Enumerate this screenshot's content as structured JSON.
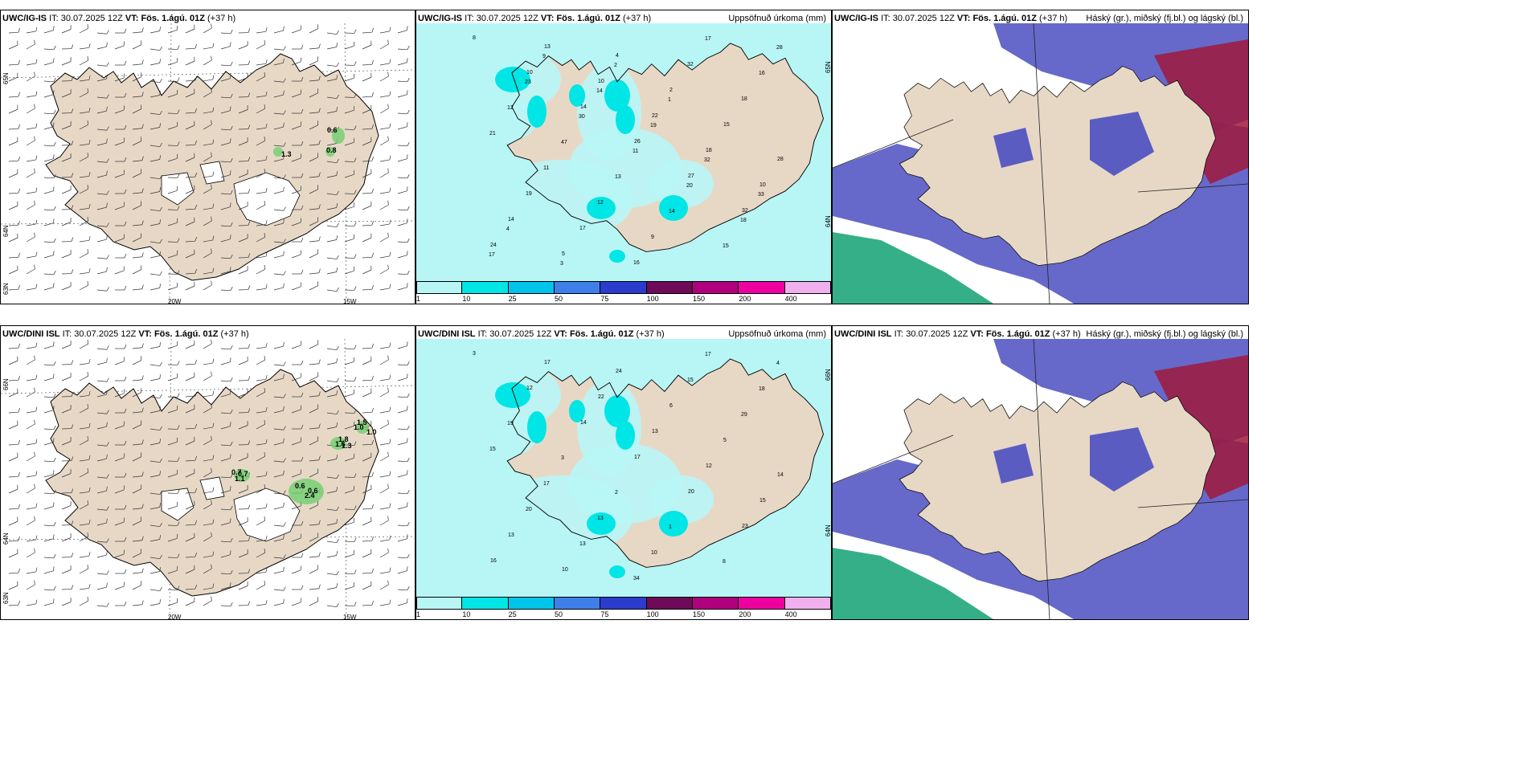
{
  "rows": [
    {
      "model": "UWC/IG-IS",
      "wind": {
        "it_label": "IT:",
        "it": "30.07.2025 12Z",
        "vt_label": "VT:",
        "vt": "Fös. 1.ágú. 01Z",
        "lead": "(+37 h)",
        "values": [
          "0.6",
          "0.8",
          "1.3"
        ],
        "lat_labels": [
          "65N",
          "64N",
          "63N"
        ],
        "lon_labels": [
          "20W",
          "15W"
        ]
      },
      "precip": {
        "it_label": "IT:",
        "it": "30.07.2025 12Z",
        "vt_label": "VT:",
        "vt": "Fös. 1.ágú. 01Z",
        "lead": "(+37 h)",
        "right": "Uppsöfnuð úrkoma (mm)",
        "values": [
          "8",
          "10",
          "14",
          "26",
          "27",
          "32",
          "24",
          "13",
          "10",
          "22",
          "18",
          "10",
          "14",
          "5",
          "4",
          "2",
          "15",
          "28",
          "19",
          "17",
          "16",
          "32",
          "18",
          "21",
          "11",
          "12",
          "9",
          "17",
          "16",
          "12",
          "47",
          "13",
          "14",
          "15",
          "28",
          "23",
          "30",
          "11",
          "20",
          "18",
          "17",
          "9",
          "14",
          "19",
          "32",
          "33",
          "4",
          "3",
          "2",
          "1"
        ],
        "lat_labels": [
          "65N",
          "64N"
        ]
      },
      "cloud": {
        "it_label": "IT:",
        "it": "30.07.2025 12Z",
        "vt_label": "VT:",
        "vt": "Fös. 1.ágú. 01Z",
        "lead": "(+37 h)",
        "right": "Háský (gr.), miðský (fj.bl.) og lágský (bl.)"
      }
    },
    {
      "model": "UWC/DINI ISL",
      "wind": {
        "it_label": "IT:",
        "it": "30.07.2025 12Z",
        "vt_label": "VT:",
        "vt": "Fös. 1.ágú. 01Z",
        "lead": "(+37 h)",
        "values": [
          "0.6",
          "0.7",
          "1.3",
          "1.5",
          "0.6",
          "1.1",
          "1.8",
          "1.0",
          "2.4",
          "0.7",
          "1.6",
          "1.0"
        ],
        "lat_labels": [
          "66N",
          "64N",
          "63N"
        ],
        "lon_labels": [
          "20W",
          "15W"
        ]
      },
      "precip": {
        "it_label": "IT:",
        "it": "30.07.2025 12Z",
        "vt_label": "VT:",
        "vt": "Fös. 1.ágú. 01Z",
        "lead": "(+37 h)",
        "right": "Uppsöfnuð úrkoma (mm)",
        "values": [
          "3",
          "12",
          "14",
          "17",
          "20",
          "23",
          "16",
          "17",
          "22",
          "13",
          "12",
          "15",
          "13",
          "10",
          "24",
          "6",
          "5",
          "14",
          "20",
          "13",
          "34",
          "15",
          "29",
          "15",
          "17",
          "13",
          "10",
          "17",
          "18",
          "19",
          "3",
          "2",
          "1",
          "8",
          "4"
        ],
        "lat_labels": [
          "66N",
          "64N"
        ]
      },
      "cloud": {
        "it_label": "IT:",
        "it": "30.07.2025 12Z",
        "vt_label": "VT:",
        "vt": "Fös. 1.ágú. 01Z",
        "lead": "(+37 h)",
        "right": "Háský (gr.), miðský (fj.bl.) og lágský (bl.)"
      }
    }
  ],
  "precip_legend": {
    "labels": [
      "1",
      "10",
      "25",
      "50",
      "75",
      "100",
      "150",
      "200",
      "400"
    ],
    "colors": [
      "#b8f6f6",
      "#00e5e5",
      "#00c4ea",
      "#3f7fea",
      "#2b3ccc",
      "#6e0a58",
      "#b0007e",
      "#ee00a0",
      "#f0b0ee"
    ]
  },
  "colors": {
    "land": "#e7d8c6",
    "snow": "#ffffff",
    "precip_light": "#b8f6f6",
    "precip_cyan": "#00e5e5",
    "wind_green": "#6fcf6f",
    "high_cloud": "#a01a3c",
    "mid_cloud": "#4b4fc0",
    "low_cloud": "#1fa67a"
  }
}
